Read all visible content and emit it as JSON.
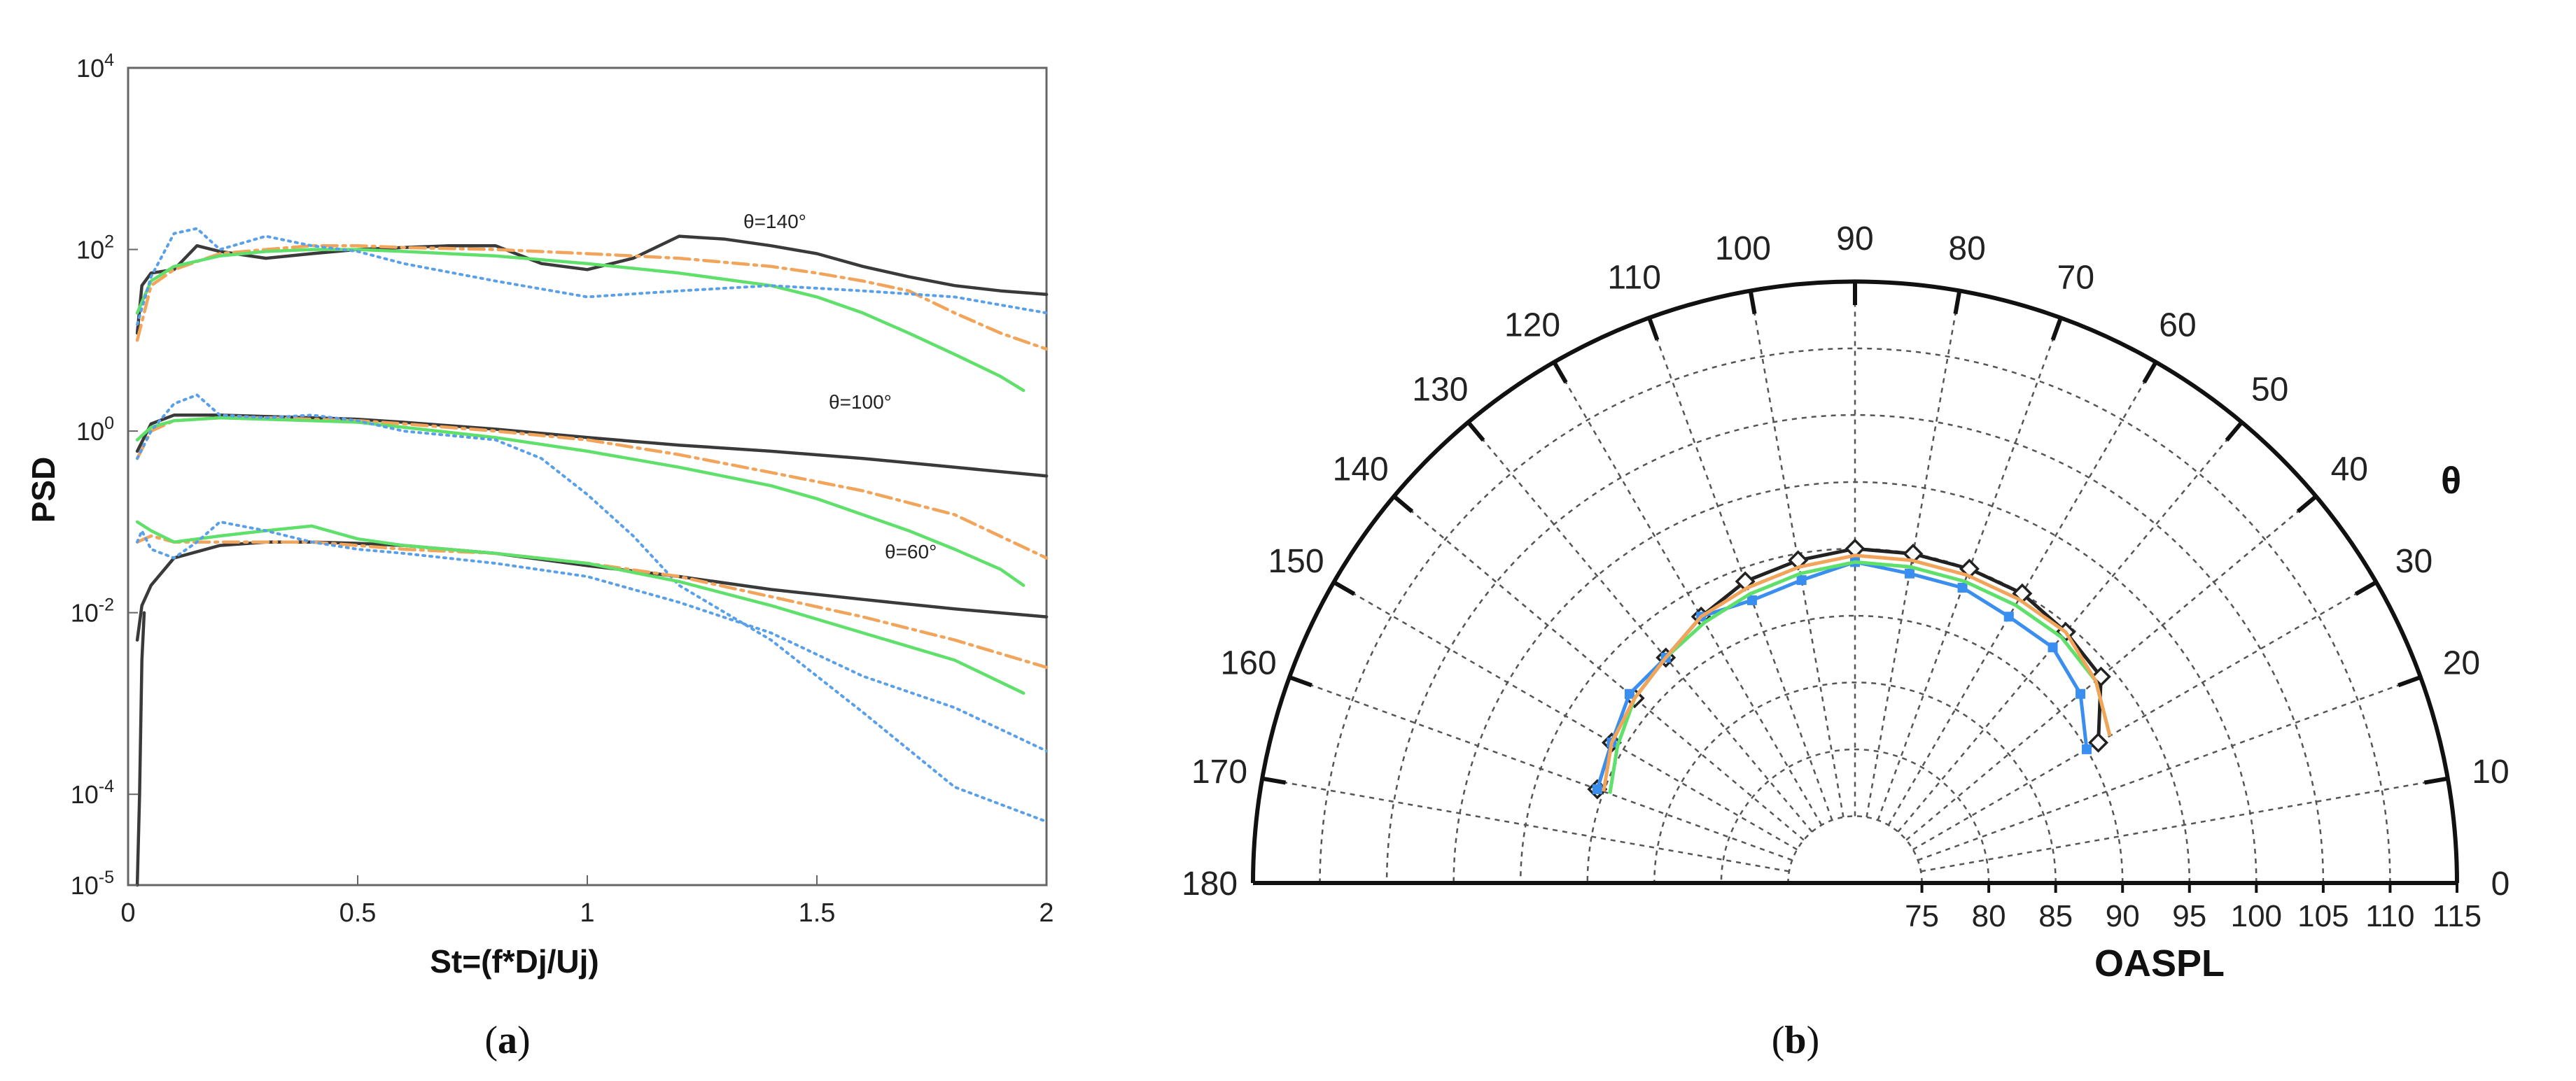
{
  "panel_a": {
    "caption_open": "(",
    "caption": "a",
    "caption_close": ")",
    "chart_data": {
      "type": "line",
      "yscale": "log",
      "xlabel": "St=(f*Dj/Uj)",
      "ylabel": "PSD",
      "xlim": [
        0,
        2
      ],
      "ylim": [
        1e-05,
        10000
      ],
      "x_ticks": [
        "0",
        "0.5",
        "1",
        "1.5",
        "2"
      ],
      "y_ticks": [
        {
          "base": "10",
          "exp": "4",
          "value": 10000
        },
        {
          "base": "10",
          "exp": "2",
          "value": 100
        },
        {
          "base": "10",
          "exp": "0",
          "value": 1
        },
        {
          "base": "10",
          "exp": "-2",
          "value": 0.01
        },
        {
          "base": "10",
          "exp": "-4",
          "value": 0.0001
        },
        {
          "base": "10",
          "exp": "-5",
          "value": 1e-05
        }
      ],
      "annotations": [
        "θ=140°",
        "θ=100°",
        "θ=60°"
      ],
      "series": [
        {
          "name": "θ=140° black",
          "color": "#3a3a3a",
          "style": "solid",
          "x": [
            0.02,
            0.03,
            0.05,
            0.1,
            0.15,
            0.2,
            0.3,
            0.4,
            0.5,
            0.6,
            0.7,
            0.8,
            0.9,
            1.0,
            1.1,
            1.2,
            1.3,
            1.4,
            1.5,
            1.6,
            1.7,
            1.8,
            1.9,
            2.0
          ],
          "y": [
            12,
            40,
            55,
            60,
            110,
            95,
            80,
            90,
            100,
            105,
            110,
            110,
            70,
            60,
            80,
            140,
            130,
            110,
            90,
            65,
            50,
            40,
            35,
            32
          ]
        },
        {
          "name": "θ=140° orange",
          "color": "#f2a55a",
          "style": "dashdot",
          "x": [
            0.02,
            0.05,
            0.1,
            0.2,
            0.3,
            0.4,
            0.5,
            0.6,
            0.8,
            1.0,
            1.2,
            1.4,
            1.5,
            1.6,
            1.7,
            1.8,
            1.9,
            2.0
          ],
          "y": [
            10,
            40,
            60,
            90,
            100,
            110,
            110,
            105,
            100,
            90,
            80,
            65,
            55,
            45,
            35,
            20,
            12,
            8
          ]
        },
        {
          "name": "θ=140° green",
          "color": "#5ee06a",
          "style": "solid",
          "x": [
            0.02,
            0.05,
            0.1,
            0.2,
            0.3,
            0.4,
            0.5,
            0.6,
            0.8,
            1.0,
            1.2,
            1.4,
            1.5,
            1.6,
            1.7,
            1.8,
            1.9,
            1.95
          ],
          "y": [
            20,
            45,
            65,
            85,
            95,
            100,
            100,
            95,
            85,
            70,
            55,
            40,
            30,
            20,
            12,
            7,
            4,
            2.8
          ]
        },
        {
          "name": "θ=140° blue dotted",
          "color": "#5aa0e8",
          "style": "dotted",
          "x": [
            0.02,
            0.05,
            0.1,
            0.15,
            0.2,
            0.3,
            0.4,
            0.5,
            0.6,
            0.8,
            1.0,
            1.2,
            1.4,
            1.6,
            1.8,
            2.0
          ],
          "y": [
            15,
            50,
            150,
            170,
            100,
            140,
            110,
            95,
            70,
            45,
            30,
            35,
            40,
            35,
            30,
            20
          ]
        },
        {
          "name": "θ=100° black",
          "color": "#3a3a3a",
          "style": "solid",
          "x": [
            0.02,
            0.05,
            0.1,
            0.2,
            0.3,
            0.4,
            0.5,
            0.6,
            0.8,
            1.0,
            1.2,
            1.4,
            1.6,
            1.8,
            2.0
          ],
          "y": [
            0.6,
            1.2,
            1.5,
            1.5,
            1.45,
            1.4,
            1.35,
            1.25,
            1.05,
            0.85,
            0.7,
            0.6,
            0.5,
            0.4,
            0.32
          ]
        },
        {
          "name": "θ=100° orange",
          "color": "#f2a55a",
          "style": "dashdot",
          "x": [
            0.02,
            0.05,
            0.1,
            0.2,
            0.3,
            0.4,
            0.5,
            0.6,
            0.8,
            1.0,
            1.2,
            1.4,
            1.6,
            1.8,
            2.0
          ],
          "y": [
            0.5,
            1.0,
            1.3,
            1.4,
            1.4,
            1.35,
            1.3,
            1.2,
            1.0,
            0.8,
            0.55,
            0.35,
            0.22,
            0.12,
            0.04
          ]
        },
        {
          "name": "θ=100° green",
          "color": "#5ee06a",
          "style": "solid",
          "x": [
            0.02,
            0.05,
            0.1,
            0.2,
            0.3,
            0.4,
            0.5,
            0.6,
            0.8,
            1.0,
            1.2,
            1.4,
            1.5,
            1.6,
            1.7,
            1.8,
            1.9,
            1.95
          ],
          "y": [
            0.8,
            1.1,
            1.3,
            1.4,
            1.35,
            1.3,
            1.25,
            1.1,
            0.85,
            0.6,
            0.4,
            0.25,
            0.18,
            0.12,
            0.08,
            0.05,
            0.03,
            0.02
          ]
        },
        {
          "name": "θ=100° blue dotted",
          "color": "#5aa0e8",
          "style": "dotted",
          "x": [
            0.02,
            0.05,
            0.1,
            0.15,
            0.2,
            0.3,
            0.4,
            0.5,
            0.6,
            0.8,
            0.9,
            1.0,
            1.1,
            1.2,
            1.4,
            1.6,
            1.8,
            2.0
          ],
          "y": [
            0.5,
            1.0,
            2.0,
            2.5,
            1.5,
            1.4,
            1.5,
            1.3,
            1.0,
            0.8,
            0.5,
            0.2,
            0.07,
            0.02,
            0.005,
            0.0008,
            0.00012,
            5e-05
          ]
        },
        {
          "name": "θ=60° black",
          "color": "#3a3a3a",
          "style": "solid",
          "x": [
            0.02,
            0.03,
            0.05,
            0.1,
            0.2,
            0.3,
            0.4,
            0.5,
            0.6,
            0.8,
            1.0,
            1.2,
            1.4,
            1.6,
            1.8,
            2.0
          ],
          "y": [
            0.005,
            0.012,
            0.02,
            0.04,
            0.055,
            0.06,
            0.06,
            0.058,
            0.055,
            0.045,
            0.033,
            0.025,
            0.018,
            0.014,
            0.011,
            0.009
          ]
        },
        {
          "name": "θ=60° orange",
          "color": "#f2a55a",
          "style": "dashdot",
          "x": [
            0.02,
            0.05,
            0.1,
            0.2,
            0.3,
            0.4,
            0.5,
            0.6,
            0.8,
            1.0,
            1.2,
            1.4,
            1.6,
            1.8,
            2.0
          ],
          "y": [
            0.06,
            0.07,
            0.06,
            0.06,
            0.06,
            0.06,
            0.055,
            0.05,
            0.045,
            0.035,
            0.025,
            0.015,
            0.009,
            0.005,
            0.0025
          ]
        },
        {
          "name": "θ=60° green",
          "color": "#5ee06a",
          "style": "solid",
          "x": [
            0.02,
            0.05,
            0.1,
            0.2,
            0.3,
            0.4,
            0.5,
            0.6,
            0.8,
            1.0,
            1.2,
            1.4,
            1.6,
            1.8,
            1.95
          ],
          "y": [
            0.1,
            0.08,
            0.06,
            0.07,
            0.08,
            0.09,
            0.065,
            0.055,
            0.045,
            0.035,
            0.022,
            0.012,
            0.006,
            0.003,
            0.0013
          ]
        },
        {
          "name": "θ=60° blue dotted",
          "color": "#5aa0e8",
          "style": "dotted",
          "x": [
            0.02,
            0.03,
            0.05,
            0.1,
            0.15,
            0.2,
            0.3,
            0.4,
            0.5,
            0.6,
            0.8,
            1.0,
            1.2,
            1.4,
            1.6,
            1.8,
            2.0
          ],
          "y": [
            0.06,
            0.08,
            0.05,
            0.04,
            0.06,
            0.1,
            0.08,
            0.06,
            0.05,
            0.045,
            0.035,
            0.025,
            0.013,
            0.006,
            0.002,
            0.0009,
            0.0003
          ]
        },
        {
          "name": "low-frequency drop",
          "color": "#3a3a3a",
          "style": "solid",
          "x": [
            0.02,
            0.025,
            0.03,
            0.035
          ],
          "y": [
            1e-05,
            0.0001,
            0.003,
            0.01
          ]
        }
      ]
    }
  },
  "panel_b": {
    "caption_open": "(",
    "caption": "b",
    "caption_close": ")",
    "chart_data": {
      "type": "polar",
      "theta_label": "θ",
      "r_label": "OASPL",
      "theta_range": [
        0,
        180
      ],
      "r_range": [
        70,
        115
      ],
      "theta_ticks": [
        "0",
        "10",
        "20",
        "30",
        "40",
        "50",
        "60",
        "70",
        "80",
        "90",
        "100",
        "110",
        "120",
        "130",
        "140",
        "150",
        "160",
        "170",
        "180"
      ],
      "r_ticks": [
        "75",
        "80",
        "85",
        "90",
        "95",
        "100",
        "105",
        "110",
        "115"
      ],
      "series": [
        {
          "name": "black open diamonds",
          "color": "#222222",
          "marker": "diamond-open",
          "theta": [
            30,
            40,
            50,
            60,
            70,
            80,
            90,
            100,
            110,
            120,
            130,
            140,
            150,
            160
          ],
          "r": [
            91,
            94,
            94.5,
            95,
            95,
            95,
            95,
            94.5,
            94,
            93,
            92,
            91.5,
            91,
            90.5
          ]
        },
        {
          "name": "blue squares",
          "color": "#3a8ef0",
          "marker": "square",
          "theta": [
            30,
            40,
            50,
            60,
            70,
            80,
            90,
            100,
            110,
            120,
            130,
            140,
            150,
            160
          ],
          "r": [
            90,
            92,
            93,
            93,
            93.5,
            93.5,
            94,
            93,
            92.5,
            93,
            92,
            92,
            91,
            90.5
          ]
        },
        {
          "name": "green",
          "color": "#5ee06a",
          "marker": "none",
          "theta": [
            30,
            40,
            50,
            60,
            70,
            80,
            90,
            100,
            110,
            120,
            130,
            140,
            150,
            160
          ],
          "r": [
            92,
            93.5,
            94,
            94,
            94,
            94,
            94,
            93.5,
            93,
            92.5,
            92,
            91.5,
            90.5,
            89.5
          ]
        },
        {
          "name": "orange",
          "color": "#f2a55a",
          "marker": "none",
          "theta": [
            30,
            40,
            50,
            60,
            70,
            80,
            90,
            100,
            110,
            120,
            130,
            140,
            150,
            160
          ],
          "r": [
            92,
            93.5,
            94.5,
            94.5,
            94.5,
            94.5,
            94.5,
            94,
            93.5,
            93,
            92,
            91.5,
            91,
            90
          ]
        }
      ]
    }
  }
}
